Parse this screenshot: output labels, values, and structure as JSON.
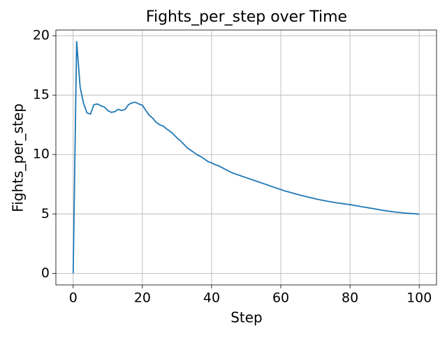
{
  "chart_data": {
    "type": "line",
    "title": "Fights_per_step over Time",
    "x_label": "Step",
    "y_label": "Fights_per_step",
    "x": [
      0,
      1,
      2,
      3,
      4,
      5,
      6,
      7,
      8,
      9,
      10,
      11,
      12,
      13,
      14,
      15,
      16,
      17,
      18,
      19,
      20,
      21,
      22,
      23,
      24,
      25,
      26,
      27,
      28,
      29,
      30,
      31,
      32,
      33,
      34,
      35,
      36,
      37,
      38,
      39,
      40,
      41,
      42,
      43,
      44,
      45,
      46,
      47,
      48,
      49,
      50,
      51,
      52,
      53,
      54,
      55,
      56,
      57,
      58,
      59,
      60,
      61,
      62,
      63,
      64,
      65,
      66,
      67,
      68,
      69,
      70,
      71,
      72,
      73,
      74,
      75,
      76,
      77,
      78,
      79,
      80,
      81,
      82,
      83,
      84,
      85,
      86,
      87,
      88,
      89,
      90,
      91,
      92,
      93,
      94,
      95,
      96,
      97,
      98,
      99,
      100
    ],
    "series": [
      {
        "name": "Fights_per_step",
        "color": "#1f77b4",
        "values": [
          0,
          19.5,
          15.7,
          14.3,
          13.5,
          13.4,
          14.2,
          14.25,
          14.1,
          14.0,
          13.7,
          13.55,
          13.6,
          13.8,
          13.7,
          13.8,
          14.2,
          14.35,
          14.4,
          14.25,
          14.15,
          13.7,
          13.3,
          13.05,
          12.7,
          12.5,
          12.4,
          12.15,
          11.95,
          11.7,
          11.4,
          11.15,
          10.85,
          10.55,
          10.35,
          10.15,
          9.95,
          9.8,
          9.6,
          9.4,
          9.3,
          9.15,
          9.05,
          8.9,
          8.75,
          8.6,
          8.45,
          8.35,
          8.25,
          8.15,
          8.05,
          7.95,
          7.85,
          7.75,
          7.65,
          7.55,
          7.45,
          7.35,
          7.25,
          7.15,
          7.05,
          6.95,
          6.87,
          6.79,
          6.71,
          6.63,
          6.55,
          6.48,
          6.41,
          6.34,
          6.27,
          6.21,
          6.15,
          6.09,
          6.04,
          5.99,
          5.94,
          5.9,
          5.86,
          5.82,
          5.78,
          5.73,
          5.68,
          5.63,
          5.58,
          5.53,
          5.48,
          5.43,
          5.38,
          5.33,
          5.28,
          5.24,
          5.2,
          5.16,
          5.13,
          5.1,
          5.07,
          5.05,
          5.03,
          5.01,
          4.98
        ]
      }
    ],
    "xlim": [
      -5,
      105
    ],
    "ylim": [
      -0.975,
      20.475
    ],
    "xticks": [
      0,
      20,
      40,
      60,
      80,
      100
    ],
    "yticks": [
      0,
      5,
      10,
      15,
      20
    ],
    "grid": true
  }
}
